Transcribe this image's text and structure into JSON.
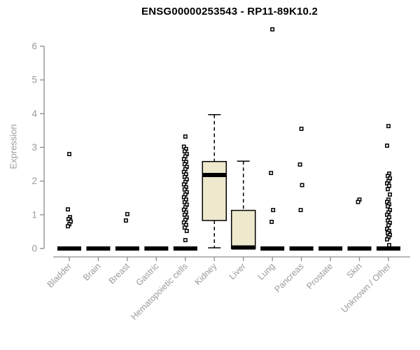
{
  "chart_data": {
    "type": "boxplot",
    "title": "ENSG00000253543 - RP11-89K10.2",
    "ylabel": "Expression",
    "xlabel": "",
    "ylim": [
      0,
      6
    ],
    "yticks": [
      0,
      1,
      2,
      3,
      4,
      5,
      6
    ],
    "grid": false,
    "legend": false,
    "categories": [
      "Bladder",
      "Brain",
      "Breast",
      "Gastric",
      "Hematopoietic cells",
      "Kidney",
      "Liver",
      "Lung",
      "Pancreas",
      "Prostate",
      "Skin",
      "Unknown / Other"
    ],
    "boxes": [
      {
        "category": "Bladder",
        "min": 0,
        "q1": 0,
        "median": 0,
        "q3": 0,
        "max": 0,
        "outliers": [
          2.8,
          1.16,
          0.93,
          0.87,
          0.8,
          0.72,
          0.66
        ]
      },
      {
        "category": "Brain",
        "min": 0,
        "q1": 0,
        "median": 0,
        "q3": 0,
        "max": 0,
        "outliers": []
      },
      {
        "category": "Breast",
        "min": 0,
        "q1": 0,
        "median": 0,
        "q3": 0,
        "max": 0,
        "outliers": [
          1.02,
          0.83
        ]
      },
      {
        "category": "Gastric",
        "min": 0,
        "q1": 0,
        "median": 0,
        "q3": 0,
        "max": 0,
        "outliers": []
      },
      {
        "category": "Hematopoietic cells",
        "min": 0,
        "q1": 0,
        "median": 0,
        "q3": 0,
        "max": 0,
        "outliers": [
          3.32,
          3.02,
          2.95,
          2.88,
          2.8,
          2.73,
          2.65,
          2.57,
          2.5,
          2.42,
          2.35,
          2.27,
          2.2,
          2.12,
          2.05,
          1.97,
          1.9,
          1.82,
          1.75,
          1.67,
          1.6,
          1.52,
          1.45,
          1.37,
          1.3,
          1.22,
          1.15,
          1.07,
          1.0,
          0.92,
          0.85,
          0.77,
          0.7,
          0.62,
          0.52,
          0.25
        ]
      },
      {
        "category": "Kidney",
        "min": 0.02,
        "q1": 0.83,
        "median": 2.18,
        "q3": 2.58,
        "max": 3.97,
        "outliers": []
      },
      {
        "category": "Liver",
        "min": 0,
        "q1": 0,
        "median": 0.03,
        "q3": 1.13,
        "max": 2.59,
        "outliers": []
      },
      {
        "category": "Lung",
        "min": 0,
        "q1": 0,
        "median": 0,
        "q3": 0,
        "max": 0,
        "outliers": [
          6.5,
          2.24,
          1.14,
          0.79
        ]
      },
      {
        "category": "Pancreas",
        "min": 0,
        "q1": 0,
        "median": 0,
        "q3": 0,
        "max": 0,
        "outliers": [
          3.55,
          2.49,
          1.88,
          1.14
        ]
      },
      {
        "category": "Prostate",
        "min": 0,
        "q1": 0,
        "median": 0,
        "q3": 0,
        "max": 0,
        "outliers": []
      },
      {
        "category": "Skin",
        "min": 0,
        "q1": 0,
        "median": 0,
        "q3": 0,
        "max": 0,
        "outliers": [
          1.45,
          1.38
        ]
      },
      {
        "category": "Unknown / Other",
        "min": 0,
        "q1": 0,
        "median": 0,
        "q3": 0,
        "max": 0,
        "outliers": [
          3.63,
          3.05,
          2.22,
          2.15,
          2.08,
          2.0,
          1.93,
          1.86,
          1.76,
          1.6,
          1.45,
          1.38,
          1.31,
          1.25,
          1.14,
          1.07,
          1.0,
          0.93,
          0.83,
          0.76,
          0.69,
          0.58,
          0.52,
          0.46,
          0.4,
          0.33,
          0.27,
          0.1
        ]
      }
    ],
    "colors": {
      "box_fill": "#EEE8CD",
      "box_border": "#000000",
      "median": "#000000",
      "whisker": "#000000",
      "outlier": "#000000",
      "axis_line": "#8c8c8c",
      "tick_label": "#9a9a9a",
      "title": "#000000",
      "background": "#ffffff"
    }
  }
}
